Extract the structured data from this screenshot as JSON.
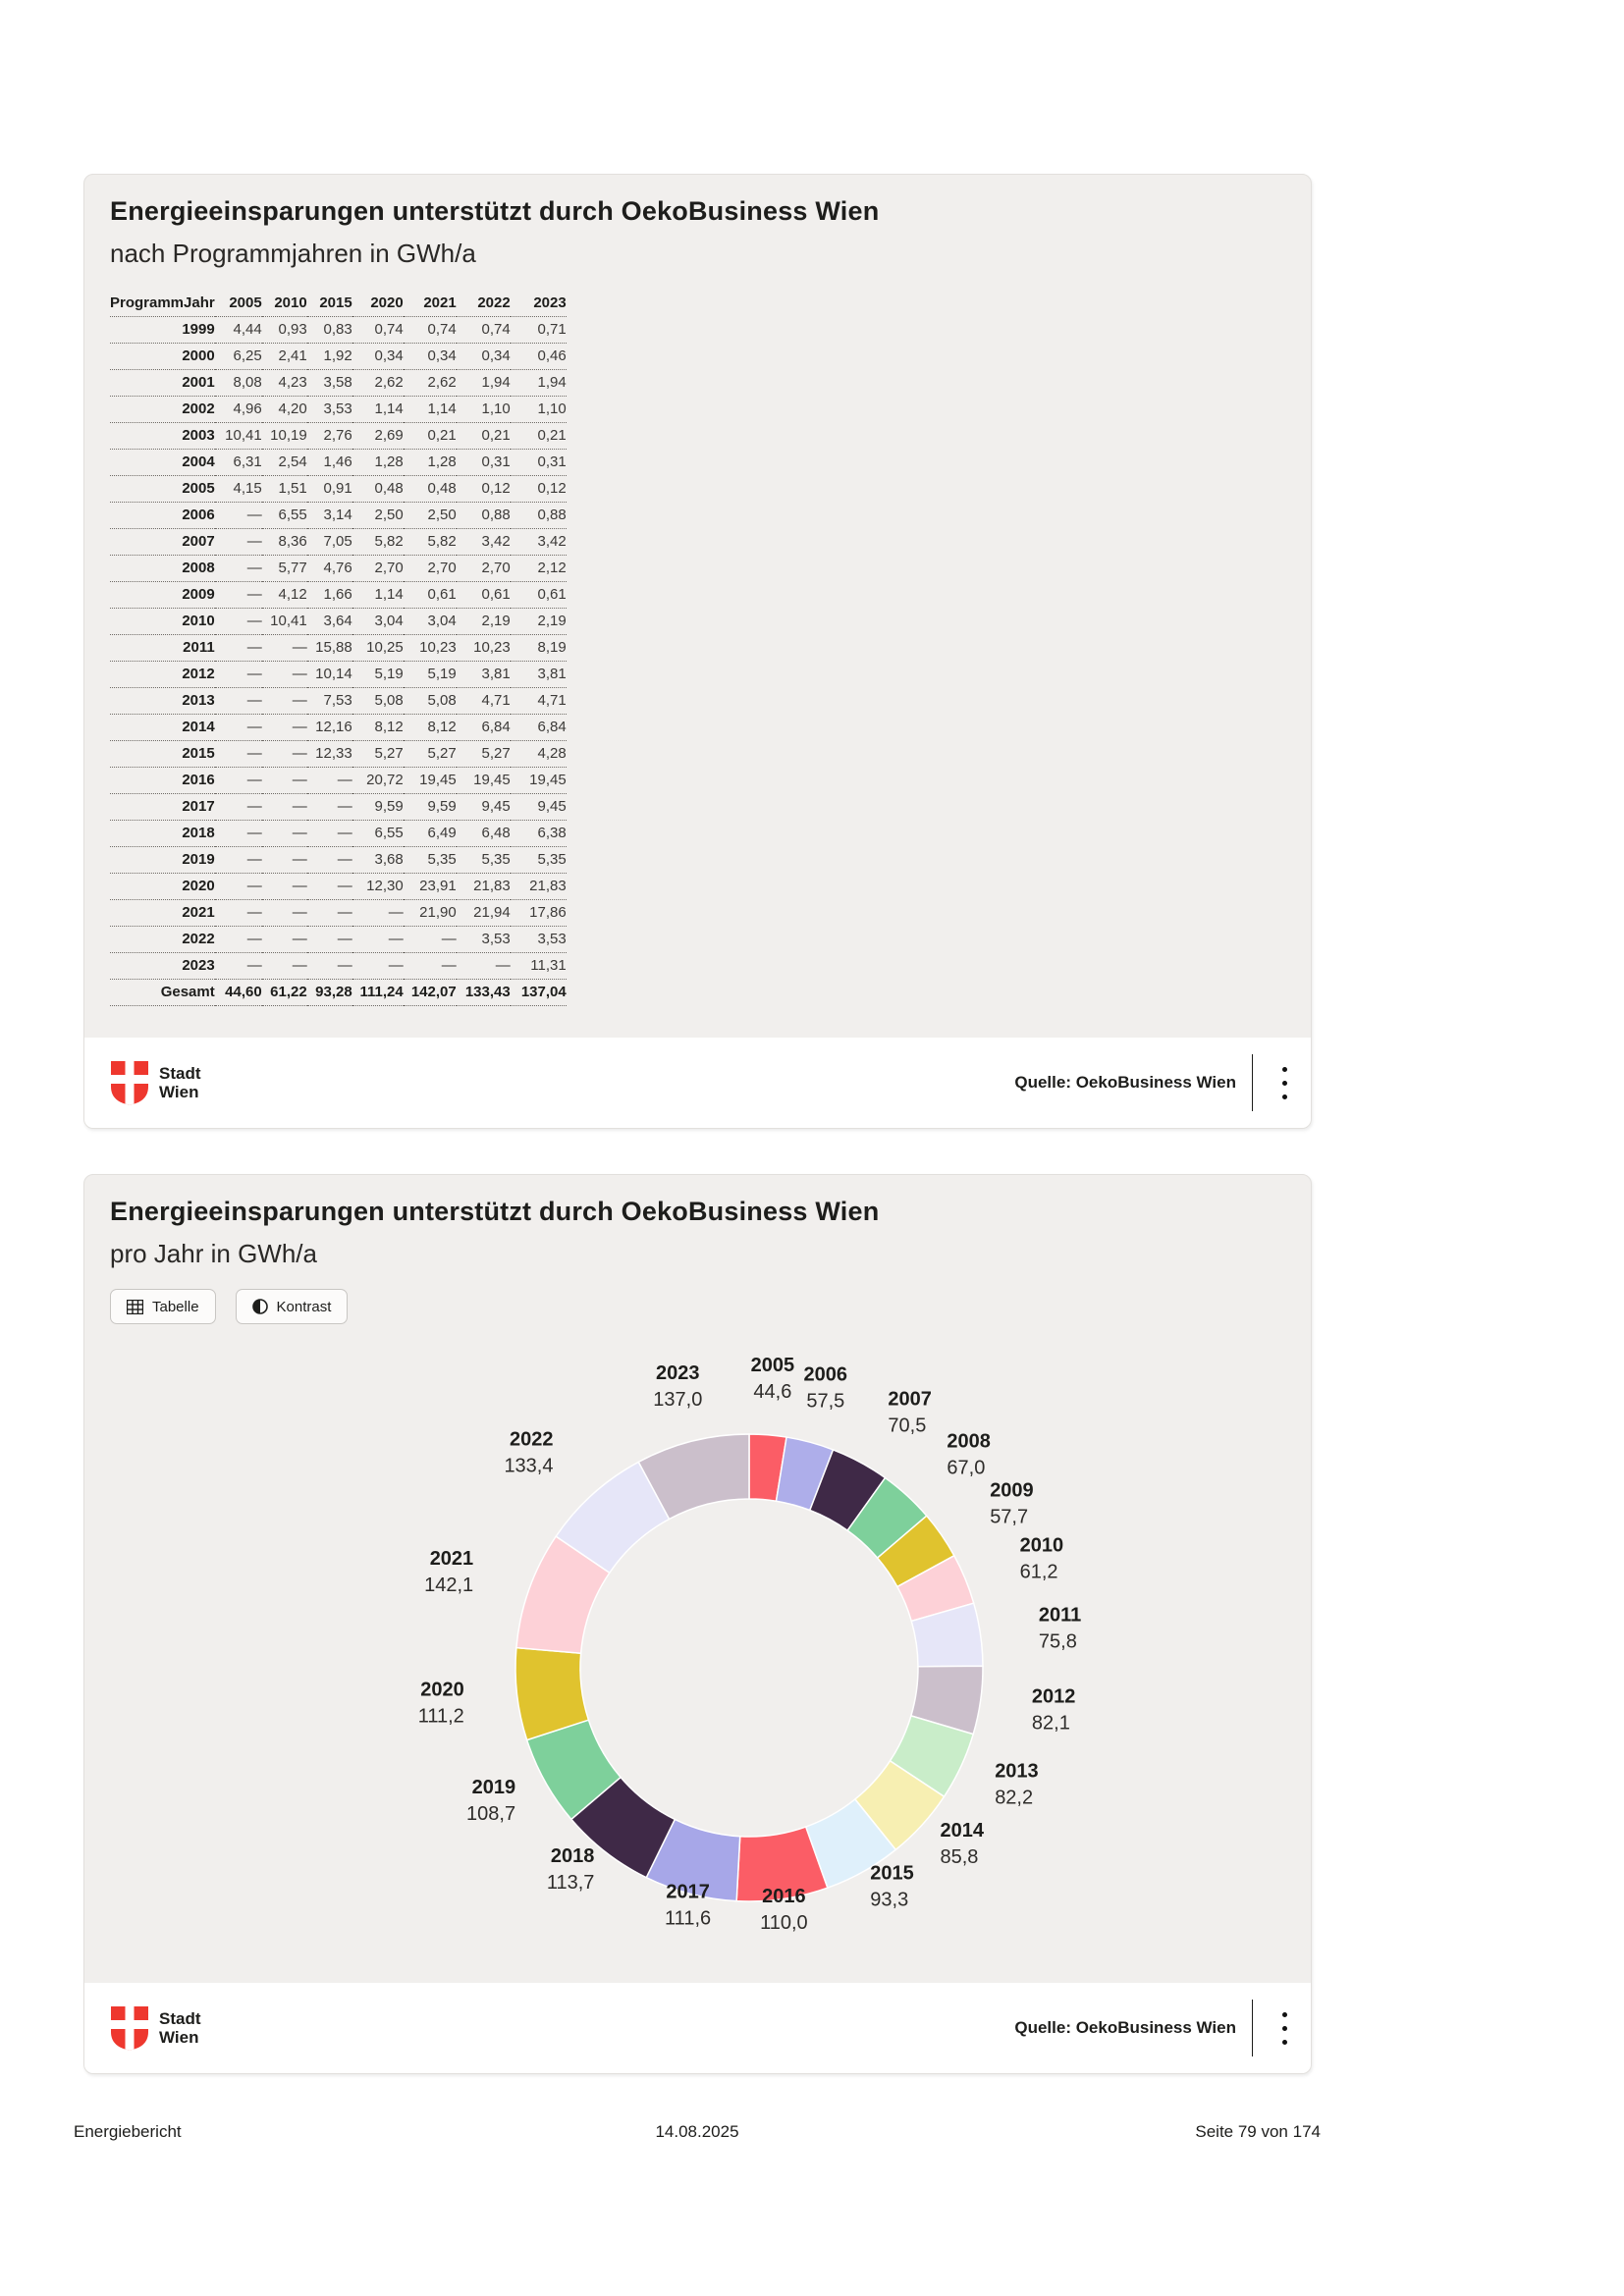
{
  "attribution": {
    "logo_line1": "Stadt",
    "logo_line2": "Wien",
    "logo_color": "#ee372e",
    "source_label": "Quelle: OekoBusiness Wien"
  },
  "card1": {
    "title": "Energieeinsparungen unterstützt durch OekoBusiness Wien",
    "subtitle": "nach Programmjahren in GWh/a",
    "table": {
      "columns": [
        "ProgrammJahr",
        "2005",
        "2010",
        "2015",
        "2020",
        "2021",
        "2022",
        "2023"
      ],
      "rows": [
        [
          "1999",
          "4,44",
          "0,93",
          "0,83",
          "0,74",
          "0,74",
          "0,74",
          "0,71"
        ],
        [
          "2000",
          "6,25",
          "2,41",
          "1,92",
          "0,34",
          "0,34",
          "0,34",
          "0,46"
        ],
        [
          "2001",
          "8,08",
          "4,23",
          "3,58",
          "2,62",
          "2,62",
          "1,94",
          "1,94"
        ],
        [
          "2002",
          "4,96",
          "4,20",
          "3,53",
          "1,14",
          "1,14",
          "1,10",
          "1,10"
        ],
        [
          "2003",
          "10,41",
          "10,19",
          "2,76",
          "2,69",
          "0,21",
          "0,21",
          "0,21"
        ],
        [
          "2004",
          "6,31",
          "2,54",
          "1,46",
          "1,28",
          "1,28",
          "0,31",
          "0,31"
        ],
        [
          "2005",
          "4,15",
          "1,51",
          "0,91",
          "0,48",
          "0,48",
          "0,12",
          "0,12"
        ],
        [
          "2006",
          "—",
          "6,55",
          "3,14",
          "2,50",
          "2,50",
          "0,88",
          "0,88"
        ],
        [
          "2007",
          "—",
          "8,36",
          "7,05",
          "5,82",
          "5,82",
          "3,42",
          "3,42"
        ],
        [
          "2008",
          "—",
          "5,77",
          "4,76",
          "2,70",
          "2,70",
          "2,70",
          "2,12"
        ],
        [
          "2009",
          "—",
          "4,12",
          "1,66",
          "1,14",
          "0,61",
          "0,61",
          "0,61"
        ],
        [
          "2010",
          "—",
          "10,41",
          "3,64",
          "3,04",
          "3,04",
          "2,19",
          "2,19"
        ],
        [
          "2011",
          "—",
          "—",
          "15,88",
          "10,25",
          "10,23",
          "10,23",
          "8,19"
        ],
        [
          "2012",
          "—",
          "—",
          "10,14",
          "5,19",
          "5,19",
          "3,81",
          "3,81"
        ],
        [
          "2013",
          "—",
          "—",
          "7,53",
          "5,08",
          "5,08",
          "4,71",
          "4,71"
        ],
        [
          "2014",
          "—",
          "—",
          "12,16",
          "8,12",
          "8,12",
          "6,84",
          "6,84"
        ],
        [
          "2015",
          "—",
          "—",
          "12,33",
          "5,27",
          "5,27",
          "5,27",
          "4,28"
        ],
        [
          "2016",
          "—",
          "—",
          "—",
          "20,72",
          "19,45",
          "19,45",
          "19,45"
        ],
        [
          "2017",
          "—",
          "—",
          "—",
          "9,59",
          "9,59",
          "9,45",
          "9,45"
        ],
        [
          "2018",
          "—",
          "—",
          "—",
          "6,55",
          "6,49",
          "6,48",
          "6,38"
        ],
        [
          "2019",
          "—",
          "—",
          "—",
          "3,68",
          "5,35",
          "5,35",
          "5,35"
        ],
        [
          "2020",
          "—",
          "—",
          "—",
          "12,30",
          "23,91",
          "21,83",
          "21,83"
        ],
        [
          "2021",
          "—",
          "—",
          "—",
          "—",
          "21,90",
          "21,94",
          "17,86"
        ],
        [
          "2022",
          "—",
          "—",
          "—",
          "—",
          "—",
          "3,53",
          "3,53"
        ],
        [
          "2023",
          "—",
          "—",
          "—",
          "—",
          "—",
          "—",
          "11,31"
        ]
      ],
      "total_row": [
        "Gesamt",
        "44,60",
        "61,22",
        "93,28",
        "111,24",
        "142,07",
        "133,43",
        "137,04"
      ]
    }
  },
  "card2": {
    "title": "Energieeinsparungen unterstützt durch OekoBusiness Wien",
    "subtitle": "pro Jahr in GWh/a",
    "buttons": [
      {
        "label": "Tabelle",
        "icon": "table-icon"
      },
      {
        "label": "Kontrast",
        "icon": "contrast-icon"
      }
    ]
  },
  "chart_data": {
    "type": "pie",
    "subtype": "donut",
    "title": "Energieeinsparungen unterstützt durch OekoBusiness Wien",
    "subtitle": "pro Jahr in GWh/a",
    "unit": "GWh/a",
    "legend_position": "none",
    "categories": [
      "2005",
      "2006",
      "2007",
      "2008",
      "2009",
      "2010",
      "2011",
      "2012",
      "2013",
      "2014",
      "2015",
      "2016",
      "2017",
      "2018",
      "2019",
      "2020",
      "2021",
      "2022",
      "2023"
    ],
    "values": [
      44.6,
      57.5,
      70.5,
      67.0,
      57.7,
      61.2,
      75.8,
      82.1,
      82.2,
      85.8,
      93.3,
      110.0,
      111.6,
      113.7,
      108.7,
      111.2,
      142.1,
      133.4,
      137.0
    ],
    "value_labels": [
      "44,6",
      "57,5",
      "70,5",
      "67,0",
      "57,7",
      "61,2",
      "75,8",
      "82,1",
      "82,2",
      "85,8",
      "93,3",
      "110,0",
      "111,6",
      "113,7",
      "108,7",
      "111,2",
      "142,1",
      "133,4",
      "137,0"
    ],
    "colors": [
      "#fb5d66",
      "#aeaeea",
      "#3f2947",
      "#7ed09b",
      "#e0c32e",
      "#fdd1d7",
      "#e6e6f8",
      "#cbbfcb",
      "#c9edc9",
      "#f7efb2",
      "#dff0fb",
      "#fb5d66",
      "#a7a7e8",
      "#3f2947",
      "#7ed09b",
      "#e0c32e",
      "#fdd1d7",
      "#e6e6f8",
      "#cbbfcb"
    ],
    "start_angle_deg": 0,
    "clockwise": true,
    "source": "Quelle: OekoBusiness Wien"
  },
  "page_footer": {
    "left": "Energiebericht",
    "center": "14.08.2025",
    "right": "Seite 79 von 174"
  }
}
